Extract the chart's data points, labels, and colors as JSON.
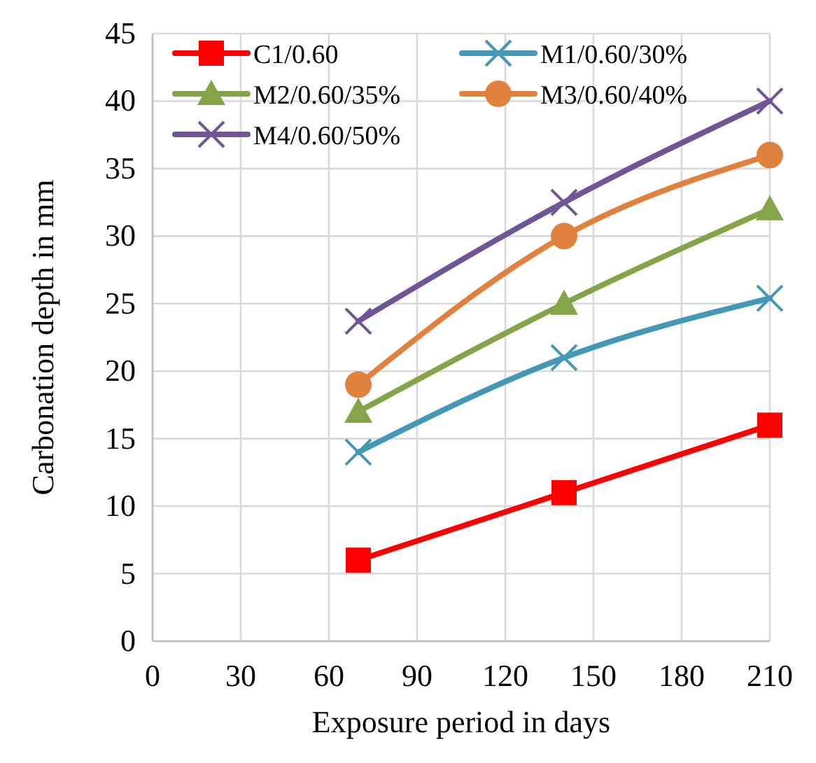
{
  "chart_data": {
    "type": "line",
    "xlabel": "Exposure period in days",
    "ylabel": "Carbonation depth in mm",
    "x": [
      70,
      140,
      210
    ],
    "xlim": [
      0,
      210
    ],
    "xticks": [
      0,
      30,
      60,
      90,
      120,
      150,
      180,
      210
    ],
    "ylim": [
      0,
      45
    ],
    "yticks": [
      0,
      5,
      10,
      15,
      20,
      25,
      30,
      35,
      40,
      45
    ],
    "grid": true,
    "legend": "top",
    "line_style": "solid",
    "series": [
      {
        "name": "C1/0.60",
        "color": "#ff0000",
        "marker": "square",
        "values": [
          6,
          11,
          16
        ]
      },
      {
        "name": "M1/0.60/30%",
        "color": "#4298b5",
        "marker": "cross",
        "values": [
          14,
          21,
          25.4
        ]
      },
      {
        "name": "M2/0.60/35%",
        "color": "#84a547",
        "marker": "triangle",
        "values": [
          17,
          25,
          32
        ]
      },
      {
        "name": "M3/0.60/40%",
        "color": "#e0823e",
        "marker": "circle",
        "values": [
          19,
          30,
          36
        ]
      },
      {
        "name": "M4/0.60/50%",
        "color": "#6f5597",
        "marker": "cross",
        "values": [
          23.7,
          32.5,
          40
        ]
      }
    ]
  }
}
